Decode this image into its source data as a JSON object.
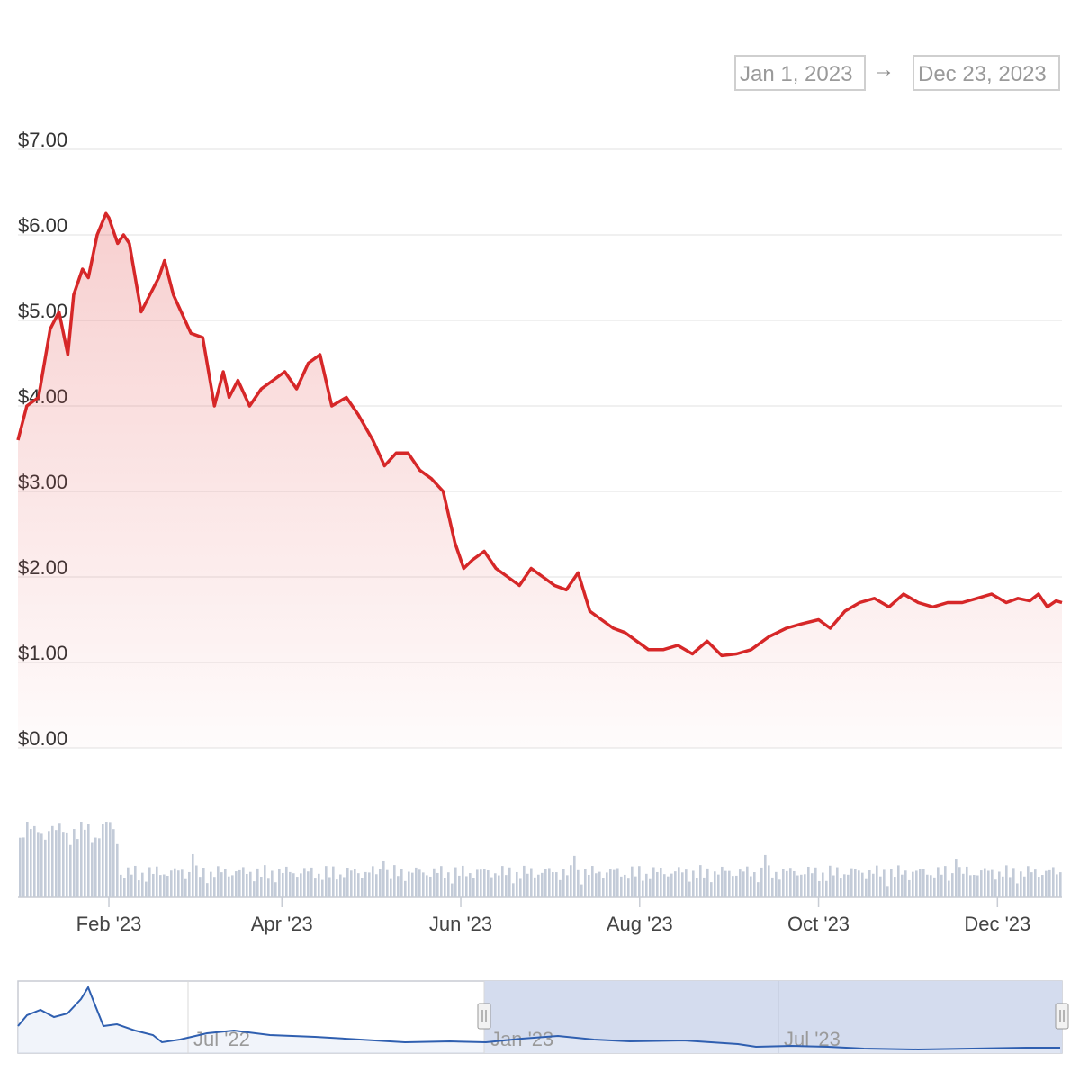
{
  "range": {
    "from": "Jan 1, 2023",
    "arrow": "→",
    "to": "Dec 23, 2023"
  },
  "colors": {
    "price_line": "#d62728",
    "volume": "#c3cbd8",
    "navigator_line": "#2f5fb0",
    "navigator_selection": "#d4dcee"
  },
  "chart_data": {
    "type": "line",
    "y_ticks": [
      "$0.00",
      "$1.00",
      "$2.00",
      "$3.00",
      "$4.00",
      "$5.00",
      "$6.00",
      "$7.00"
    ],
    "ylim": [
      0,
      7
    ],
    "x_ticks": [
      {
        "label": "Feb '23",
        "date": "2023-02-01"
      },
      {
        "label": "Apr '23",
        "date": "2023-04-01"
      },
      {
        "label": "Jun '23",
        "date": "2023-06-01"
      },
      {
        "label": "Aug '23",
        "date": "2023-08-01"
      },
      {
        "label": "Oct '23",
        "date": "2023-10-01"
      },
      {
        "label": "Dec '23",
        "date": "2023-12-01"
      }
    ],
    "xlim": [
      "2023-01-01",
      "2023-12-23"
    ],
    "series": [
      {
        "x": [
          "2023-01-01",
          "2023-01-04",
          "2023-01-08",
          "2023-01-12",
          "2023-01-15",
          "2023-01-18",
          "2023-01-20",
          "2023-01-23",
          "2023-01-25",
          "2023-01-28",
          "2023-01-31",
          "2023-02-01",
          "2023-02-04",
          "2023-02-06",
          "2023-02-08",
          "2023-02-12",
          "2023-02-15",
          "2023-02-18",
          "2023-02-20",
          "2023-02-23",
          "2023-02-27",
          "2023-03-01",
          "2023-03-05",
          "2023-03-09",
          "2023-03-12",
          "2023-03-14",
          "2023-03-17",
          "2023-03-21",
          "2023-03-25",
          "2023-03-29",
          "2023-04-02",
          "2023-04-06",
          "2023-04-10",
          "2023-04-14",
          "2023-04-18",
          "2023-04-23",
          "2023-04-27",
          "2023-05-02",
          "2023-05-06",
          "2023-05-10",
          "2023-05-14",
          "2023-05-18",
          "2023-05-22",
          "2023-05-26",
          "2023-05-30",
          "2023-06-02",
          "2023-06-05",
          "2023-06-09",
          "2023-06-13",
          "2023-06-17",
          "2023-06-21",
          "2023-06-25",
          "2023-06-29",
          "2023-07-03",
          "2023-07-07",
          "2023-07-11",
          "2023-07-15",
          "2023-07-19",
          "2023-07-23",
          "2023-07-27",
          "2023-07-31",
          "2023-08-04",
          "2023-08-09",
          "2023-08-14",
          "2023-08-19",
          "2023-08-24",
          "2023-08-29",
          "2023-09-03",
          "2023-09-08",
          "2023-09-14",
          "2023-09-20",
          "2023-09-25",
          "2023-10-01",
          "2023-10-05",
          "2023-10-10",
          "2023-10-15",
          "2023-10-20",
          "2023-10-25",
          "2023-10-30",
          "2023-11-04",
          "2023-11-09",
          "2023-11-14",
          "2023-11-19",
          "2023-11-24",
          "2023-11-29",
          "2023-12-04",
          "2023-12-08",
          "2023-12-12",
          "2023-12-15",
          "2023-12-18",
          "2023-12-21",
          "2023-12-23"
        ],
        "y": [
          3.6,
          4.0,
          4.1,
          4.9,
          5.1,
          4.6,
          5.3,
          5.6,
          5.5,
          6.0,
          6.25,
          6.2,
          5.9,
          6.0,
          5.9,
          5.1,
          5.3,
          5.5,
          5.7,
          5.3,
          5.0,
          4.85,
          4.8,
          4.0,
          4.4,
          4.1,
          4.3,
          4.0,
          4.2,
          4.3,
          4.4,
          4.2,
          4.5,
          4.6,
          4.0,
          4.1,
          3.9,
          3.6,
          3.3,
          3.45,
          3.45,
          3.25,
          3.15,
          3.0,
          2.4,
          2.1,
          2.2,
          2.3,
          2.1,
          2.0,
          1.9,
          2.1,
          2.0,
          1.9,
          1.85,
          2.05,
          1.6,
          1.5,
          1.4,
          1.35,
          1.25,
          1.15,
          1.15,
          1.2,
          1.1,
          1.25,
          1.08,
          1.1,
          1.15,
          1.3,
          1.4,
          1.45,
          1.5,
          1.4,
          1.6,
          1.7,
          1.75,
          1.65,
          1.8,
          1.7,
          1.65,
          1.7,
          1.7,
          1.75,
          1.8,
          1.7,
          1.75,
          1.72,
          1.8,
          1.65,
          1.72,
          1.7
        ]
      }
    ],
    "volume_note": ""
  },
  "navigator": {
    "labels": [
      "Jul '22",
      "Jan '23",
      "Jul '23"
    ],
    "selection_from": "2023-01-01",
    "selection_to": "2023-12-23"
  }
}
